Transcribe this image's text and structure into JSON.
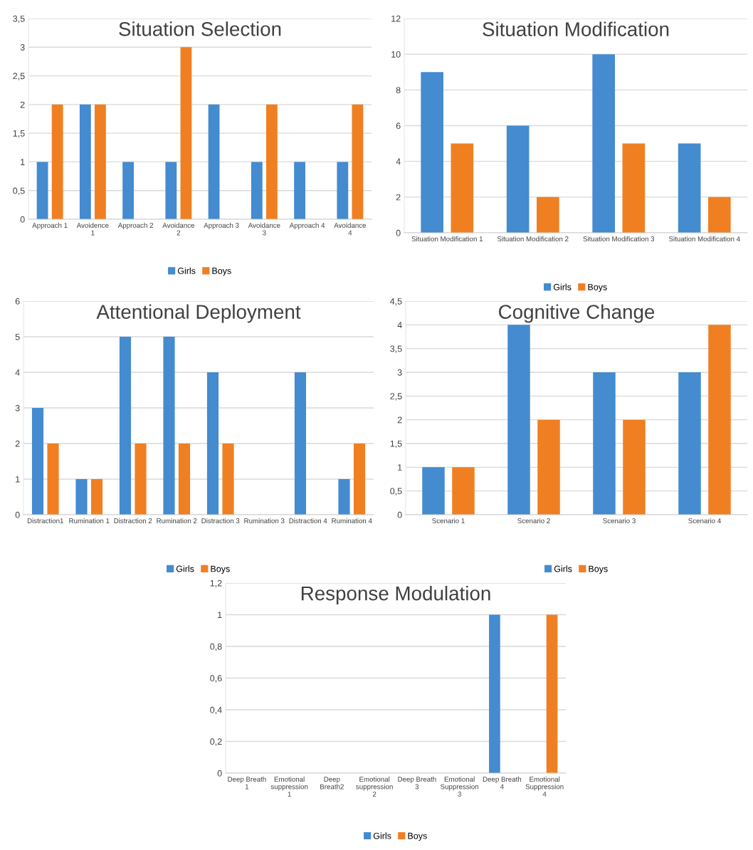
{
  "chart_data": [
    {
      "type": "bar",
      "title": "Situation Selection",
      "categories": [
        "Approach 1",
        "Avoidence\n1",
        "Approach 2",
        "Avoidance\n2",
        "Approach 3",
        "Avoidance\n3",
        "Approach 4",
        "Avoidance\n4"
      ],
      "series": [
        {
          "name": "Girls",
          "color": "#448bd0",
          "values": [
            1,
            2,
            1,
            1,
            2,
            1,
            1,
            1
          ]
        },
        {
          "name": "Boys",
          "color": "#f07f22",
          "values": [
            2,
            2,
            0,
            3,
            0,
            2,
            0,
            2
          ]
        }
      ],
      "ylim": [
        0,
        3.5
      ],
      "yticks": [
        0,
        {
          "value": 0.5,
          "label": "0,5"
        },
        1,
        {
          "value": 1.5,
          "label": "1,5"
        },
        2,
        {
          "value": 2.5,
          "label": "2,5"
        },
        3,
        {
          "value": 3.5,
          "label": "3,5"
        }
      ],
      "grid": "y",
      "legend": "bottom"
    },
    {
      "type": "bar",
      "title": "Situation Modification",
      "categories": [
        "Situation Modification 1",
        "Situation Modification 2",
        "Situation Modification 3",
        "Situation Modification 4"
      ],
      "series": [
        {
          "name": "Girls",
          "color": "#448bd0",
          "values": [
            9,
            6,
            10,
            5
          ]
        },
        {
          "name": "Boys",
          "color": "#f07f22",
          "values": [
            5,
            2,
            5,
            2
          ]
        }
      ],
      "ylim": [
        0,
        12
      ],
      "yticks": [
        0,
        2,
        4,
        6,
        8,
        10,
        12
      ],
      "grid": "y",
      "legend": "bottom"
    },
    {
      "type": "bar",
      "title": "Attentional Deployment",
      "categories": [
        "Distraction1",
        "Rumination 1",
        "Distraction 2",
        "Rumination 2",
        "Distraction 3",
        "Rumination 3",
        "Distraction 4",
        "Rumination 4"
      ],
      "series": [
        {
          "name": "Girls",
          "color": "#448bd0",
          "values": [
            3,
            1,
            5,
            5,
            4,
            0,
            4,
            1
          ]
        },
        {
          "name": "Boys",
          "color": "#f07f22",
          "values": [
            2,
            1,
            2,
            2,
            2,
            0,
            0,
            2
          ]
        }
      ],
      "ylim": [
        0,
        6
      ],
      "yticks": [
        0,
        1,
        2,
        3,
        4,
        5,
        6
      ],
      "grid": "y",
      "legend": "bottom"
    },
    {
      "type": "bar",
      "title": "Cognitive Change",
      "categories": [
        "Scenario 1",
        "Scenario 2",
        "Scenario 3",
        "Scenario 4"
      ],
      "series": [
        {
          "name": "Girls",
          "color": "#448bd0",
          "values": [
            1,
            4,
            3,
            3
          ]
        },
        {
          "name": "Boys",
          "color": "#f07f22",
          "values": [
            1,
            2,
            2,
            4
          ]
        }
      ],
      "ylim": [
        0,
        4.5
      ],
      "yticks": [
        0,
        {
          "value": 0.5,
          "label": "0,5"
        },
        1,
        {
          "value": 1.5,
          "label": "1,5"
        },
        2,
        {
          "value": 2.5,
          "label": "2,5"
        },
        3,
        {
          "value": 3.5,
          "label": "3,5"
        },
        4,
        {
          "value": 4.5,
          "label": "4,5"
        }
      ],
      "grid": "y",
      "legend": "bottom"
    },
    {
      "type": "bar",
      "title": "Response Modulation",
      "categories": [
        "Deep Breath\n1",
        "Emotional\nsuppression\n1",
        "Deep\nBreath2",
        "Emotional\nsuppression\n2",
        "Deep Breath\n3",
        "Emotional\nSuppression\n3",
        "Deep Breath\n4",
        "Emotional\nSuppression\n4"
      ],
      "series": [
        {
          "name": "Girls",
          "color": "#448bd0",
          "values": [
            0,
            0,
            0,
            0,
            0,
            0,
            1,
            0
          ]
        },
        {
          "name": "Boys",
          "color": "#f07f22",
          "values": [
            0,
            0,
            0,
            0,
            0,
            0,
            0,
            1
          ]
        }
      ],
      "ylim": [
        0,
        1.2
      ],
      "yticks": [
        0,
        {
          "value": 0.2,
          "label": "0,2"
        },
        {
          "value": 0.4,
          "label": "0,4"
        },
        {
          "value": 0.6,
          "label": "0,6"
        },
        {
          "value": 0.8,
          "label": "0,8"
        },
        1,
        {
          "value": 1.2,
          "label": "1,2"
        }
      ],
      "grid": "y",
      "legend": "bottom"
    }
  ]
}
